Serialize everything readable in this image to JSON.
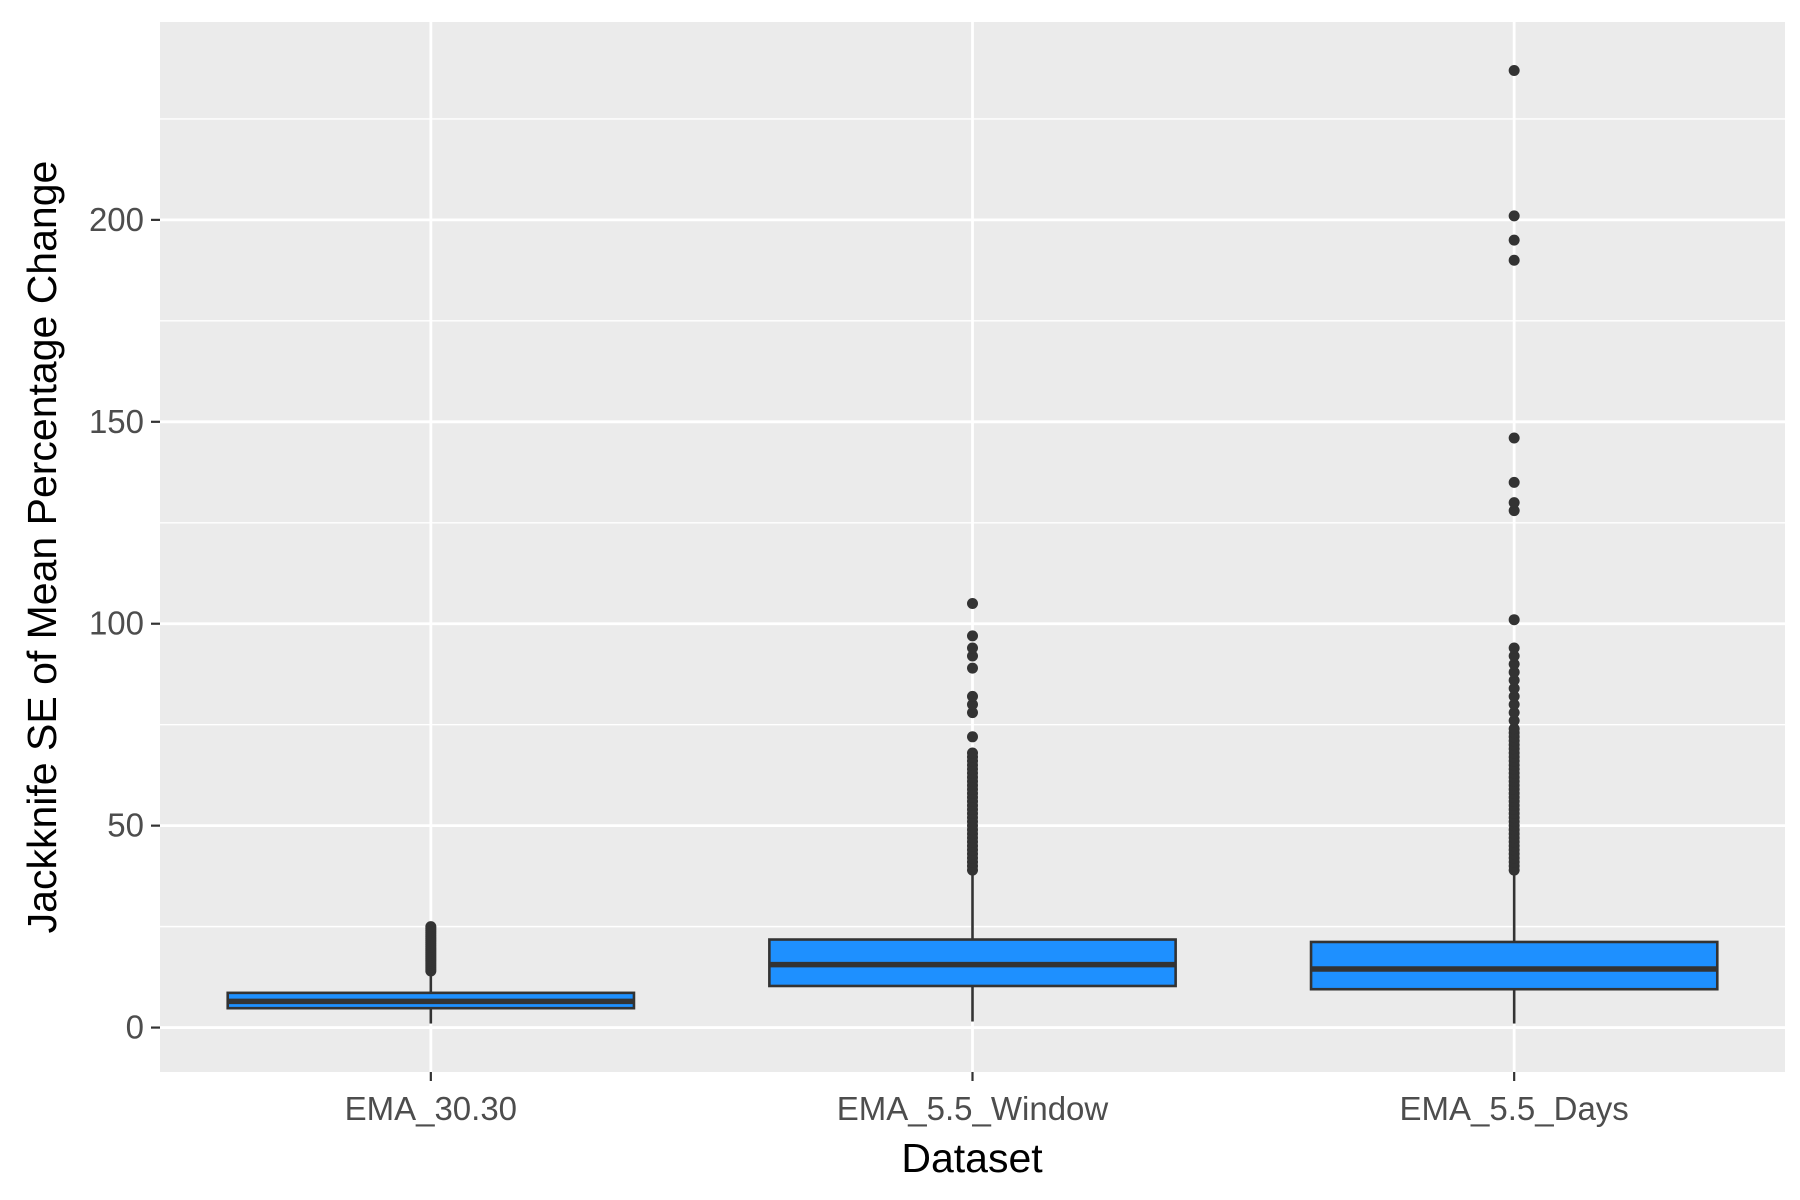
{
  "chart_data": {
    "type": "boxplot",
    "title": "",
    "xlabel": "Dataset",
    "ylabel": "Jackknife SE of Mean Percentage Change",
    "ylim": [
      -11,
      249
    ],
    "yticks": [
      0,
      50,
      100,
      150,
      200
    ],
    "y_minor_ticks": [
      25,
      75,
      125,
      175,
      225
    ],
    "grid": true,
    "legend": "none",
    "categories": [
      "EMA_30.30",
      "EMA_5.5_Window",
      "EMA_5.5_Days"
    ],
    "boxes": [
      {
        "category": "EMA_30.30",
        "whisker_low": 1,
        "q1": 4.8,
        "median": 6.5,
        "q3": 8.6,
        "whisker_high": 13,
        "outliers": [
          14,
          14.5,
          15,
          15.5,
          16,
          16.5,
          17,
          17.5,
          18,
          18.5,
          19,
          19.5,
          20,
          20.5,
          21,
          21.5,
          22,
          22.5,
          23,
          23.5,
          24,
          24.5,
          25
        ]
      },
      {
        "category": "EMA_5.5_Window",
        "whisker_low": 1.5,
        "q1": 10.3,
        "median": 15.6,
        "q3": 21.8,
        "whisker_high": 38.5,
        "outliers": [
          39,
          40,
          41,
          42,
          43,
          44,
          45,
          46,
          47,
          48,
          49,
          50,
          51,
          52,
          53,
          54,
          55,
          56,
          57,
          58,
          59,
          60,
          61,
          62,
          63,
          64,
          65,
          66,
          67,
          68,
          72,
          78,
          80,
          82,
          89,
          92,
          94,
          97,
          105
        ]
      },
      {
        "category": "EMA_5.5_Days",
        "whisker_low": 1,
        "q1": 9.5,
        "median": 14.5,
        "q3": 21.2,
        "whisker_high": 38.5,
        "outliers": [
          39,
          40,
          41,
          42,
          43,
          44,
          45,
          46,
          47,
          48,
          49,
          50,
          51,
          52,
          53,
          54,
          55,
          56,
          57,
          58,
          59,
          60,
          61,
          62,
          63,
          64,
          65,
          66,
          67,
          68,
          69,
          70,
          71,
          72,
          73,
          74,
          76,
          78,
          80,
          82,
          84,
          86,
          88,
          90,
          92,
          94,
          101,
          128,
          130,
          135,
          146,
          190,
          195,
          201,
          237
        ]
      }
    ],
    "colors": {
      "panel": "#ebebeb",
      "grid": "#ffffff",
      "box_fill": "#1e90ff",
      "box_line": "#333333",
      "outlier": "#333333"
    }
  }
}
